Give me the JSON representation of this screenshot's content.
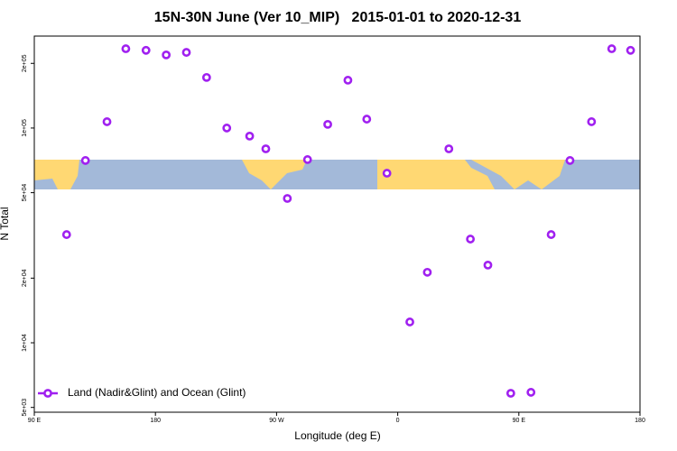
{
  "chart_data": {
    "type": "scatter",
    "title": "15N-30N June (Ver 10_MIP)   2015-01-01 to 2020-12-31",
    "x_label": "Longitude (deg E)",
    "y_label": "N Total",
    "log_y": true,
    "legend": "bottom-left",
    "xlim": [
      -270,
      180
    ],
    "xticks": [
      {
        "value": -270,
        "label": "90 E"
      },
      {
        "value": -180,
        "label": "180"
      },
      {
        "value": -90,
        "label": "90 W"
      },
      0,
      {
        "value": 90,
        "label": "90 E"
      },
      180
    ],
    "ylim": [
      4750,
      268000
    ],
    "yticks": [
      {
        "value": 5000,
        "label": "5e+03"
      },
      {
        "value": 10000,
        "label": "1e+04"
      },
      {
        "value": 20000,
        "label": "2e+04"
      },
      {
        "value": 50000,
        "label": "5e+04"
      },
      {
        "value": 100000,
        "label": "1e+05"
      },
      {
        "value": 200000,
        "label": "2e+05"
      }
    ],
    "series": [
      {
        "name": "Land (Nadir&Glint) and Ocean (Glint)",
        "color": "#a020f0",
        "x": [
          -246,
          -232,
          -216,
          -202,
          -187,
          -172,
          -157,
          -142,
          -127,
          -110,
          -98,
          -82,
          -67,
          -52,
          -37,
          -23,
          -8,
          9,
          22,
          38,
          54,
          67,
          84,
          99,
          114,
          128,
          144,
          159,
          173
        ],
        "values": [
          31900,
          70600,
          107000,
          234000,
          230000,
          219000,
          225000,
          172000,
          100000,
          91700,
          80000,
          47000,
          71300,
          104000,
          167000,
          110000,
          61600,
          12500,
          21300,
          80000,
          30400,
          23000,
          5820,
          5880,
          31900,
          70600,
          107000,
          234000,
          230000
        ]
      }
    ]
  }
}
